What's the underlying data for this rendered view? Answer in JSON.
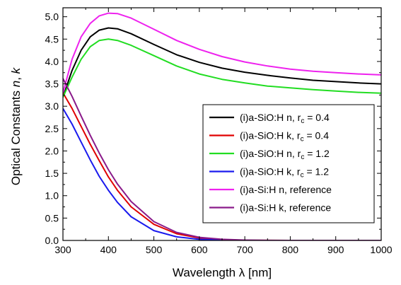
{
  "chart_data": {
    "type": "line",
    "title": "",
    "xlabel": "Wavelength λ [nm]",
    "ylabel_parts": [
      "Optical Constants ",
      "n",
      ", ",
      "k"
    ],
    "xlim": [
      300,
      1000
    ],
    "ylim": [
      0.0,
      5.2
    ],
    "x_ticks": [
      300,
      400,
      500,
      600,
      700,
      800,
      900,
      1000
    ],
    "y_ticks": [
      "0.0",
      "0.5",
      "1.0",
      "1.5",
      "2.0",
      "2.5",
      "3.0",
      "3.5",
      "4.0",
      "4.5",
      "5.0"
    ],
    "grid": false,
    "legend_placement": "center-right",
    "series": [
      {
        "label_main": "(i)a-SiO:H n, r",
        "label_sub": "c",
        "label_tail": " = 0.4",
        "color": "#000000",
        "x": [
          300,
          320,
          340,
          360,
          380,
          400,
          420,
          450,
          500,
          550,
          600,
          650,
          700,
          750,
          800,
          850,
          900,
          950,
          1000
        ],
        "y": [
          3.2,
          3.8,
          4.25,
          4.55,
          4.7,
          4.75,
          4.73,
          4.62,
          4.38,
          4.15,
          3.98,
          3.85,
          3.76,
          3.69,
          3.63,
          3.58,
          3.55,
          3.52,
          3.5
        ]
      },
      {
        "label_main": "(i)a-SiO:H k, r",
        "label_sub": "c",
        "label_tail": " = 0.4",
        "color": "#e00000",
        "x": [
          300,
          320,
          340,
          360,
          380,
          400,
          420,
          450,
          500,
          550,
          600,
          650,
          700,
          750,
          800,
          1000
        ],
        "y": [
          3.3,
          2.95,
          2.55,
          2.15,
          1.78,
          1.42,
          1.12,
          0.75,
          0.36,
          0.15,
          0.055,
          0.018,
          0.005,
          0.001,
          0,
          0
        ]
      },
      {
        "label_main": "(i)a-SiO:H n, r",
        "label_sub": "c",
        "label_tail": " = 1.2",
        "color": "#22dd22",
        "x": [
          300,
          320,
          340,
          360,
          380,
          400,
          420,
          450,
          500,
          550,
          600,
          650,
          700,
          750,
          800,
          850,
          900,
          950,
          1000
        ],
        "y": [
          3.2,
          3.65,
          4.05,
          4.33,
          4.47,
          4.5,
          4.47,
          4.36,
          4.13,
          3.9,
          3.72,
          3.6,
          3.52,
          3.45,
          3.41,
          3.37,
          3.34,
          3.31,
          3.29
        ]
      },
      {
        "label_main": "(i)a-SiO:H k, r",
        "label_sub": "c",
        "label_tail": " = 1.2",
        "color": "#1a1aee",
        "x": [
          300,
          320,
          340,
          360,
          380,
          400,
          420,
          450,
          500,
          550,
          600,
          650,
          700,
          750,
          800,
          1000
        ],
        "y": [
          2.95,
          2.6,
          2.2,
          1.8,
          1.43,
          1.12,
          0.85,
          0.53,
          0.22,
          0.08,
          0.025,
          0.007,
          0.002,
          0,
          0,
          0
        ]
      },
      {
        "label_main": "(i)a-Si:H n, reference",
        "label_sub": "",
        "label_tail": "",
        "color": "#ee22ee",
        "x": [
          300,
          320,
          340,
          360,
          380,
          400,
          420,
          450,
          500,
          550,
          600,
          650,
          700,
          750,
          800,
          850,
          900,
          950,
          1000
        ],
        "y": [
          3.3,
          4.05,
          4.55,
          4.85,
          5.02,
          5.08,
          5.07,
          4.97,
          4.72,
          4.47,
          4.27,
          4.11,
          3.99,
          3.9,
          3.83,
          3.78,
          3.75,
          3.72,
          3.7
        ]
      },
      {
        "label_main": "(i)a-Si:H k, reference",
        "label_sub": "",
        "label_tail": "",
        "color": "#8a1a8a",
        "x": [
          300,
          320,
          340,
          360,
          380,
          400,
          420,
          450,
          500,
          550,
          600,
          650,
          700,
          750,
          800,
          1000
        ],
        "y": [
          3.62,
          3.22,
          2.78,
          2.35,
          1.95,
          1.58,
          1.26,
          0.87,
          0.42,
          0.18,
          0.07,
          0.025,
          0.008,
          0.002,
          0,
          0
        ]
      }
    ]
  }
}
